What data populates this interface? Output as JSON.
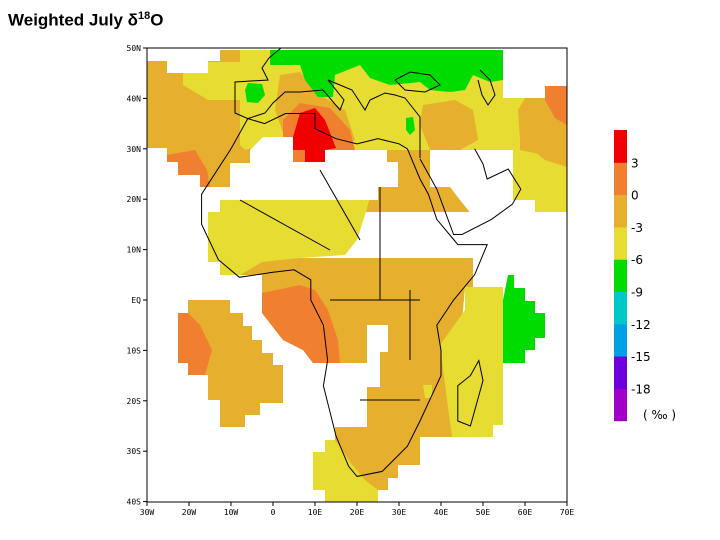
{
  "title": {
    "main": "Weighted July δ",
    "sup": "18",
    "tail": "O"
  },
  "map": {
    "lat_labels": [
      "50N",
      "40N",
      "30N",
      "20N",
      "10N",
      "EQ",
      "10S",
      "20S",
      "30S",
      "40S"
    ],
    "lon_labels": [
      "30W",
      "20W",
      "10W",
      "0",
      "10E",
      "20E",
      "30E",
      "40E",
      "50E",
      "60E",
      "70E"
    ]
  },
  "legend": {
    "colors": [
      "#f00000",
      "#f08030",
      "#e6af2e",
      "#e6dc32",
      "#00dc00",
      "#00c8c8",
      "#00a0e6",
      "#6e00dc",
      "#a000c8"
    ],
    "labels": [
      "3",
      "0",
      "-3",
      "-6",
      "-9",
      "-12",
      "-15",
      "-18"
    ],
    "unit": "( ‰ )"
  }
}
